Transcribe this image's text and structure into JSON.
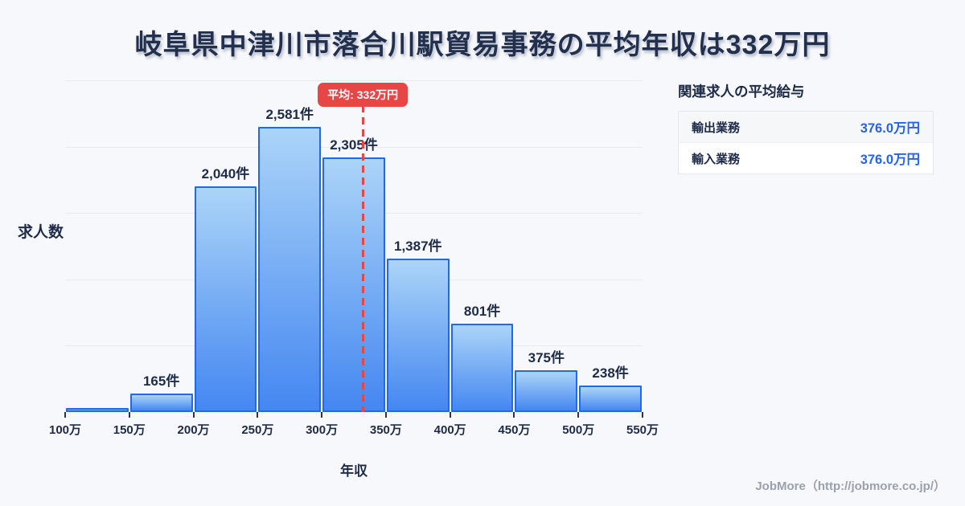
{
  "page": {
    "title": "岐阜県中津川市落合川駅貿易事務の平均年収は332万円",
    "footer_credit": "JobMore（http://jobmore.co.jp/）"
  },
  "chart_data": {
    "type": "bar",
    "title": "岐阜県中津川市落合川駅貿易事務の平均年収は332万円",
    "xlabel": "年収",
    "ylabel": "求人数",
    "x_tick_labels": [
      "100万",
      "150万",
      "200万",
      "250万",
      "300万",
      "350万",
      "400万",
      "450万",
      "500万",
      "550万"
    ],
    "x_range_man": [
      100,
      550
    ],
    "bin_width_man": 50,
    "values": [
      25,
      165,
      2040,
      2581,
      2305,
      1387,
      801,
      375,
      238
    ],
    "bar_labels": [
      "",
      "165件",
      "2,040件",
      "2,581件",
      "2,305件",
      "1,387件",
      "801件",
      "375件",
      "238件"
    ],
    "ylim": [
      0,
      3000
    ],
    "gridline_step": 600,
    "grid": "horizontal",
    "legend": "none",
    "average_line": {
      "value_man": 332,
      "label": "平均: 332万円"
    }
  },
  "related_panel": {
    "heading": "関連求人の平均給与",
    "rows": [
      {
        "label": "輸出業務",
        "value": "376.0万円"
      },
      {
        "label": "輸入業務",
        "value": "376.0万円"
      }
    ]
  },
  "colors": {
    "background": "#f7f8fb",
    "title_text": "#22304e",
    "bar_fill_top": "#abd4f8",
    "bar_fill_bottom": "#4487f1",
    "bar_border": "#2468e8",
    "value_label_text": "#1e2b48",
    "average_red": "#e64646",
    "related_value_blue": "#2563eb",
    "footer_gray": "#9ba1ac",
    "gridline": "#e7eaf0"
  }
}
